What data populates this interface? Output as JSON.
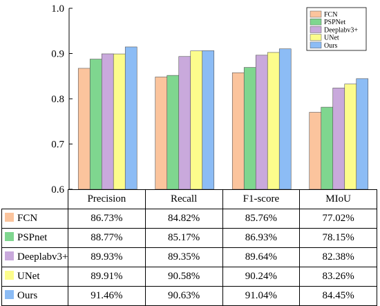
{
  "chart_data": {
    "type": "bar",
    "categories": [
      "Precision",
      "Recall",
      "F1-score",
      "MIoU"
    ],
    "ylim": [
      0.6,
      1.0
    ],
    "yticks": [
      "0.6",
      "0.7",
      "0.8",
      "0.9",
      "1.0"
    ],
    "ytick_values": [
      0.6,
      0.7,
      0.8,
      0.9,
      1.0
    ],
    "grid": false,
    "legend_position": "top-right",
    "series": [
      {
        "name": "FCN",
        "table_name": "FCN",
        "color": "#fbc49d",
        "values": [
          0.8673,
          0.8482,
          0.8576,
          0.7702
        ],
        "labels": [
          "86.73%",
          "84.82%",
          "85.76%",
          "77.02%"
        ]
      },
      {
        "name": "PSPNet",
        "table_name": "PSPnet",
        "color": "#7fd68f",
        "values": [
          0.8877,
          0.8517,
          0.8693,
          0.7815
        ],
        "labels": [
          "88.77%",
          "85.17%",
          "86.93%",
          "78.15%"
        ]
      },
      {
        "name": "Deeplabv3+",
        "table_name": "Deeplabv3+",
        "color": "#c9a9dc",
        "values": [
          0.8993,
          0.8935,
          0.8964,
          0.8238
        ],
        "labels": [
          "89.93%",
          "89.35%",
          "89.64%",
          "82.38%"
        ]
      },
      {
        "name": "UNet",
        "table_name": "UNet",
        "color": "#fcfc8c",
        "values": [
          0.8991,
          0.9058,
          0.9024,
          0.8326
        ],
        "labels": [
          "89.91%",
          "90.58%",
          "90.24%",
          "83.26%"
        ]
      },
      {
        "name": "Ours",
        "table_name": "Ours",
        "color": "#8cbcf5",
        "values": [
          0.9146,
          0.9063,
          0.9104,
          0.8445
        ],
        "labels": [
          "91.46%",
          "90.63%",
          "91.04%",
          "84.45%"
        ]
      }
    ]
  }
}
